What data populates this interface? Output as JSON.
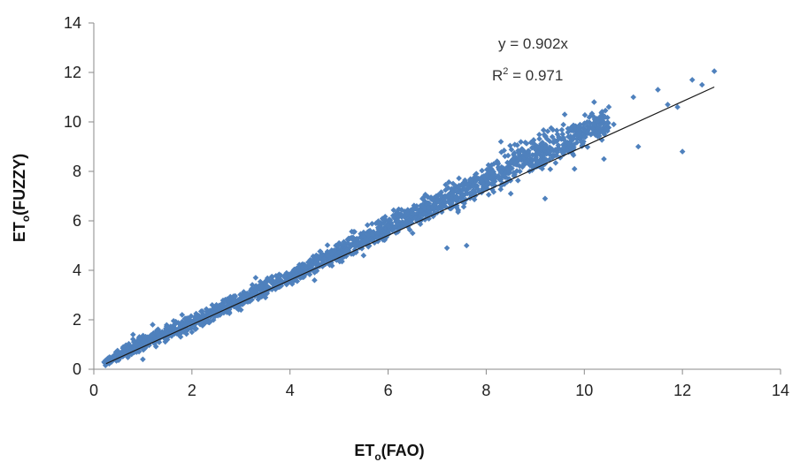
{
  "chart_data": {
    "type": "scatter",
    "title": "",
    "xlabel": {
      "main": "ET",
      "sub": "o",
      "rest": "(FAO)"
    },
    "ylabel": {
      "main": "ET",
      "sub": "o",
      "rest": "(FUZZY)"
    },
    "xlim": [
      0,
      14
    ],
    "ylim": [
      0,
      14
    ],
    "xticks": [
      "0",
      "2",
      "4",
      "6",
      "8",
      "10",
      "12",
      "14"
    ],
    "yticks": [
      "0",
      "2",
      "4",
      "6",
      "8",
      "10",
      "12",
      "14"
    ],
    "grid": false,
    "legend": "none",
    "marker_color": "#4f81bd",
    "line_color": "#1a1a1a",
    "trendline": {
      "equation": "y = 0.902x",
      "r2_label": "R",
      "r2_sup": "2",
      "r2_value": " = 0.971",
      "slope": 0.902,
      "x_range": [
        0.25,
        12.65
      ]
    },
    "series": [
      {
        "points_sample": [
          [
            0.3,
            0.3
          ],
          [
            0.5,
            0.4
          ],
          [
            0.6,
            0.9
          ],
          [
            0.8,
            1.4
          ],
          [
            1.0,
            0.4
          ],
          [
            1.2,
            1.8
          ],
          [
            1.5,
            1.2
          ],
          [
            1.8,
            2.2
          ],
          [
            2.0,
            1.5
          ],
          [
            2.5,
            2.6
          ],
          [
            3.0,
            2.4
          ],
          [
            3.3,
            3.7
          ],
          [
            3.5,
            2.9
          ],
          [
            4.0,
            3.8
          ],
          [
            4.5,
            3.6
          ],
          [
            5.0,
            5.1
          ],
          [
            5.5,
            4.6
          ],
          [
            6.0,
            5.8
          ],
          [
            6.5,
            5.5
          ],
          [
            7.0,
            6.8
          ],
          [
            7.2,
            4.9
          ],
          [
            7.6,
            5.0
          ],
          [
            8.0,
            7.4
          ],
          [
            8.3,
            9.2
          ],
          [
            8.5,
            7.1
          ],
          [
            9.0,
            8.9
          ],
          [
            9.2,
            6.9
          ],
          [
            9.6,
            10.3
          ],
          [
            9.8,
            8.1
          ],
          [
            10.0,
            9.4
          ],
          [
            10.2,
            10.8
          ],
          [
            10.4,
            8.5
          ],
          [
            10.6,
            9.9
          ],
          [
            11.0,
            11.0
          ],
          [
            11.1,
            9.0
          ],
          [
            11.5,
            11.3
          ],
          [
            11.7,
            10.7
          ],
          [
            11.9,
            10.6
          ],
          [
            12.0,
            8.8
          ],
          [
            12.2,
            11.7
          ],
          [
            12.4,
            11.5
          ],
          [
            12.65,
            12.05
          ]
        ],
        "band_points": [
          [
            0.2,
            0.1,
            0.35
          ],
          [
            0.6,
            0.35,
            1.0
          ],
          [
            1.0,
            0.65,
            1.55
          ],
          [
            1.5,
            1.05,
            1.95
          ],
          [
            2.0,
            1.45,
            2.3
          ],
          [
            2.5,
            1.95,
            2.75
          ],
          [
            3.0,
            2.35,
            3.2
          ],
          [
            3.5,
            2.8,
            3.75
          ],
          [
            4.0,
            3.25,
            4.15
          ],
          [
            4.5,
            3.7,
            4.75
          ],
          [
            5.0,
            4.15,
            5.35
          ],
          [
            5.5,
            4.6,
            5.9
          ],
          [
            6.0,
            5.05,
            6.5
          ],
          [
            6.5,
            5.5,
            7.0
          ],
          [
            7.0,
            5.9,
            7.45
          ],
          [
            7.5,
            6.35,
            7.95
          ],
          [
            8.0,
            6.8,
            8.5
          ],
          [
            8.5,
            7.25,
            9.2
          ],
          [
            9.0,
            7.7,
            9.8
          ],
          [
            9.5,
            8.2,
            10.1
          ],
          [
            10.0,
            8.7,
            10.4
          ],
          [
            10.5,
            9.2,
            10.9
          ]
        ]
      }
    ]
  }
}
